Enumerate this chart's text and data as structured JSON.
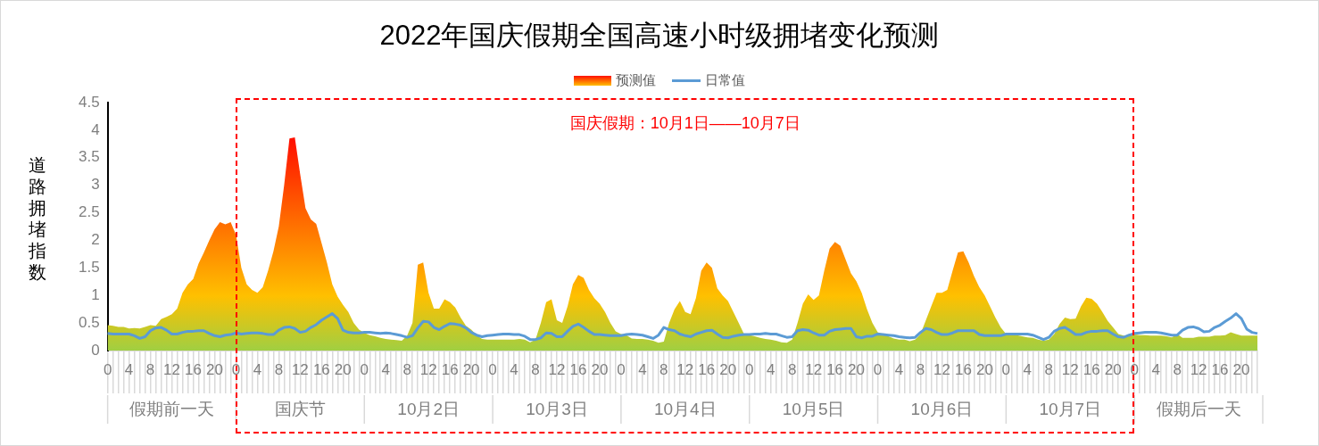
{
  "chart_data": {
    "type": "area",
    "title": "2022年国庆假期全国高速小时级拥堵变化预测",
    "ylabel": "道路拥堵指数",
    "legend": "top",
    "annotations": [
      "国庆假期：10月1日——10月7日",
      "假期前一天",
      "国庆节",
      "10月2日",
      "10月3日",
      "10月4日",
      "10月5日",
      "10月6日",
      "10月7日",
      "假期后一天"
    ],
    "categories": [
      "0",
      null,
      null,
      null,
      "4",
      null,
      null,
      null,
      "8",
      null,
      null,
      null,
      "12",
      null,
      null,
      null,
      "16",
      null,
      null,
      null,
      "20",
      null,
      null,
      null,
      "0",
      null,
      null,
      null,
      "4",
      null,
      null,
      null,
      "8",
      null,
      null,
      null,
      "12",
      null,
      null,
      null,
      "16",
      null,
      null,
      null,
      "20",
      null,
      null,
      null,
      "0",
      null,
      null,
      null,
      "4",
      null,
      null,
      null,
      "8",
      null,
      null,
      null,
      "12",
      null,
      null,
      null,
      "16",
      null,
      null,
      null,
      "20",
      null,
      null,
      null,
      "0",
      null,
      null,
      null,
      "4",
      null,
      null,
      null,
      "8",
      null,
      null,
      null,
      "12",
      null,
      null,
      null,
      "16",
      null,
      null,
      null,
      "20",
      null,
      null,
      null,
      "0",
      null,
      null,
      null,
      "4",
      null,
      null,
      null,
      "8",
      null,
      null,
      null,
      "12",
      null,
      null,
      null,
      "16",
      null,
      null,
      null,
      "20",
      null,
      null,
      null,
      "0",
      null,
      null,
      null,
      "4",
      null,
      null,
      null,
      "8",
      null,
      null,
      null,
      "12",
      null,
      null,
      null,
      "16",
      null,
      null,
      null,
      "20",
      null,
      null,
      null,
      "0",
      null,
      null,
      null,
      "4",
      null,
      null,
      null,
      "8",
      null,
      null,
      null,
      "12",
      null,
      null,
      null,
      "16",
      null,
      null,
      null,
      "20",
      null,
      null,
      null,
      "0",
      null,
      null,
      null,
      "4",
      null,
      null,
      null,
      "8",
      null,
      null,
      null,
      "12",
      null,
      null,
      null,
      "16",
      null,
      null,
      null,
      "20",
      null,
      null,
      null,
      "0",
      null,
      null,
      null,
      "4",
      null,
      null,
      null,
      "8",
      null,
      null,
      null,
      "12",
      null,
      null,
      null,
      "16",
      null,
      null,
      null,
      "20",
      null,
      null,
      null
    ],
    "ylim": [
      0,
      4.5
    ],
    "yticks": [
      0,
      0.5,
      1,
      1.5,
      2,
      2.5,
      3,
      3.5,
      4,
      4.5
    ],
    "series": [
      {
        "name": "预测值",
        "type": "area",
        "color": "#ffc000",
        "values": [
          0.46,
          0.45,
          0.43,
          0.43,
          0.4,
          0.41,
          0.4,
          0.43,
          0.46,
          0.45,
          0.57,
          0.61,
          0.66,
          0.76,
          1.05,
          1.2,
          1.3,
          1.58,
          1.78,
          2.0,
          2.2,
          2.33,
          2.29,
          2.33,
          2.1,
          1.5,
          1.2,
          1.1,
          1.05,
          1.15,
          1.45,
          1.8,
          2.25,
          3.0,
          3.85,
          3.87,
          3.2,
          2.58,
          2.38,
          2.3,
          1.95,
          1.6,
          1.2,
          0.98,
          0.83,
          0.7,
          0.5,
          0.38,
          0.32,
          0.28,
          0.26,
          0.23,
          0.21,
          0.2,
          0.19,
          0.18,
          0.27,
          0.5,
          1.56,
          1.6,
          1.05,
          0.76,
          0.76,
          0.93,
          0.88,
          0.78,
          0.6,
          0.45,
          0.38,
          0.28,
          0.21,
          0.2,
          0.2,
          0.2,
          0.2,
          0.2,
          0.2,
          0.21,
          0.2,
          0.15,
          0.2,
          0.5,
          0.88,
          0.93,
          0.55,
          0.5,
          0.8,
          1.2,
          1.37,
          1.32,
          1.1,
          0.95,
          0.85,
          0.7,
          0.5,
          0.35,
          0.3,
          0.28,
          0.22,
          0.21,
          0.21,
          0.2,
          0.18,
          0.14,
          0.16,
          0.5,
          0.75,
          0.9,
          0.7,
          0.66,
          0.95,
          1.45,
          1.6,
          1.5,
          1.13,
          1.0,
          0.9,
          0.7,
          0.5,
          0.3,
          0.28,
          0.26,
          0.23,
          0.21,
          0.2,
          0.18,
          0.15,
          0.14,
          0.2,
          0.5,
          0.85,
          1.02,
          0.92,
          1.0,
          1.45,
          1.85,
          1.97,
          1.9,
          1.65,
          1.4,
          1.26,
          1.05,
          0.75,
          0.5,
          0.33,
          0.3,
          0.26,
          0.22,
          0.2,
          0.2,
          0.17,
          0.2,
          0.3,
          0.55,
          0.8,
          1.05,
          1.05,
          1.1,
          1.45,
          1.78,
          1.8,
          1.6,
          1.35,
          1.15,
          1.0,
          0.8,
          0.6,
          0.42,
          0.3,
          0.3,
          0.28,
          0.26,
          0.24,
          0.23,
          0.2,
          0.18,
          0.2,
          0.3,
          0.48,
          0.6,
          0.57,
          0.58,
          0.8,
          0.96,
          0.94,
          0.85,
          0.7,
          0.54,
          0.42,
          0.3,
          0.27,
          0.27,
          0.29,
          0.28,
          0.28,
          0.27,
          0.27,
          0.27,
          0.26,
          0.24,
          0.3,
          0.23,
          0.23,
          0.23,
          0.25,
          0.25,
          0.25,
          0.27,
          0.27,
          0.28,
          0.33,
          0.3,
          0.27,
          0.27,
          0.27,
          0.27
        ]
      },
      {
        "name": "日常值",
        "type": "line",
        "color": "#5b9bd5",
        "values": [
          0.31,
          0.3,
          0.3,
          0.3,
          0.3,
          0.27,
          0.22,
          0.25,
          0.36,
          0.41,
          0.42,
          0.37,
          0.3,
          0.3,
          0.33,
          0.35,
          0.35,
          0.36,
          0.36,
          0.31,
          0.27,
          0.25,
          0.28,
          0.29,
          0.32,
          0.3,
          0.31,
          0.32,
          0.32,
          0.31,
          0.29,
          0.29,
          0.37,
          0.42,
          0.43,
          0.4,
          0.33,
          0.35,
          0.42,
          0.47,
          0.55,
          0.61,
          0.67,
          0.58,
          0.37,
          0.33,
          0.32,
          0.32,
          0.33,
          0.33,
          0.32,
          0.31,
          0.32,
          0.31,
          0.29,
          0.27,
          0.24,
          0.27,
          0.41,
          0.53,
          0.52,
          0.42,
          0.38,
          0.44,
          0.49,
          0.48,
          0.46,
          0.41,
          0.33,
          0.28,
          0.25,
          0.27,
          0.28,
          0.29,
          0.3,
          0.3,
          0.29,
          0.29,
          0.26,
          0.2,
          0.2,
          0.23,
          0.32,
          0.31,
          0.25,
          0.25,
          0.35,
          0.44,
          0.48,
          0.42,
          0.35,
          0.29,
          0.29,
          0.28,
          0.27,
          0.27,
          0.27,
          0.29,
          0.3,
          0.29,
          0.28,
          0.25,
          0.22,
          0.28,
          0.42,
          0.38,
          0.36,
          0.3,
          0.27,
          0.25,
          0.3,
          0.33,
          0.36,
          0.37,
          0.3,
          0.24,
          0.23,
          0.26,
          0.28,
          0.29,
          0.29,
          0.3,
          0.3,
          0.31,
          0.3,
          0.3,
          0.27,
          0.24,
          0.25,
          0.36,
          0.38,
          0.37,
          0.32,
          0.28,
          0.28,
          0.35,
          0.38,
          0.39,
          0.4,
          0.4,
          0.25,
          0.23,
          0.26,
          0.26,
          0.3,
          0.29,
          0.28,
          0.27,
          0.25,
          0.24,
          0.23,
          0.24,
          0.33,
          0.4,
          0.38,
          0.33,
          0.29,
          0.29,
          0.32,
          0.36,
          0.36,
          0.36,
          0.36,
          0.29,
          0.27,
          0.27,
          0.27,
          0.27,
          0.3,
          0.3,
          0.3,
          0.3,
          0.3,
          0.28,
          0.24,
          0.2,
          0.24,
          0.35,
          0.4,
          0.42,
          0.36,
          0.29,
          0.29,
          0.33,
          0.35,
          0.35,
          0.36,
          0.36,
          0.3,
          0.25,
          0.24,
          0.28,
          0.31,
          0.32,
          0.33,
          0.33,
          0.33,
          0.32,
          0.3,
          0.28,
          0.28,
          0.37,
          0.42,
          0.43,
          0.4,
          0.34,
          0.35,
          0.42,
          0.46,
          0.53,
          0.59,
          0.67,
          0.58,
          0.39,
          0.33,
          0.31
        ]
      }
    ]
  }
}
